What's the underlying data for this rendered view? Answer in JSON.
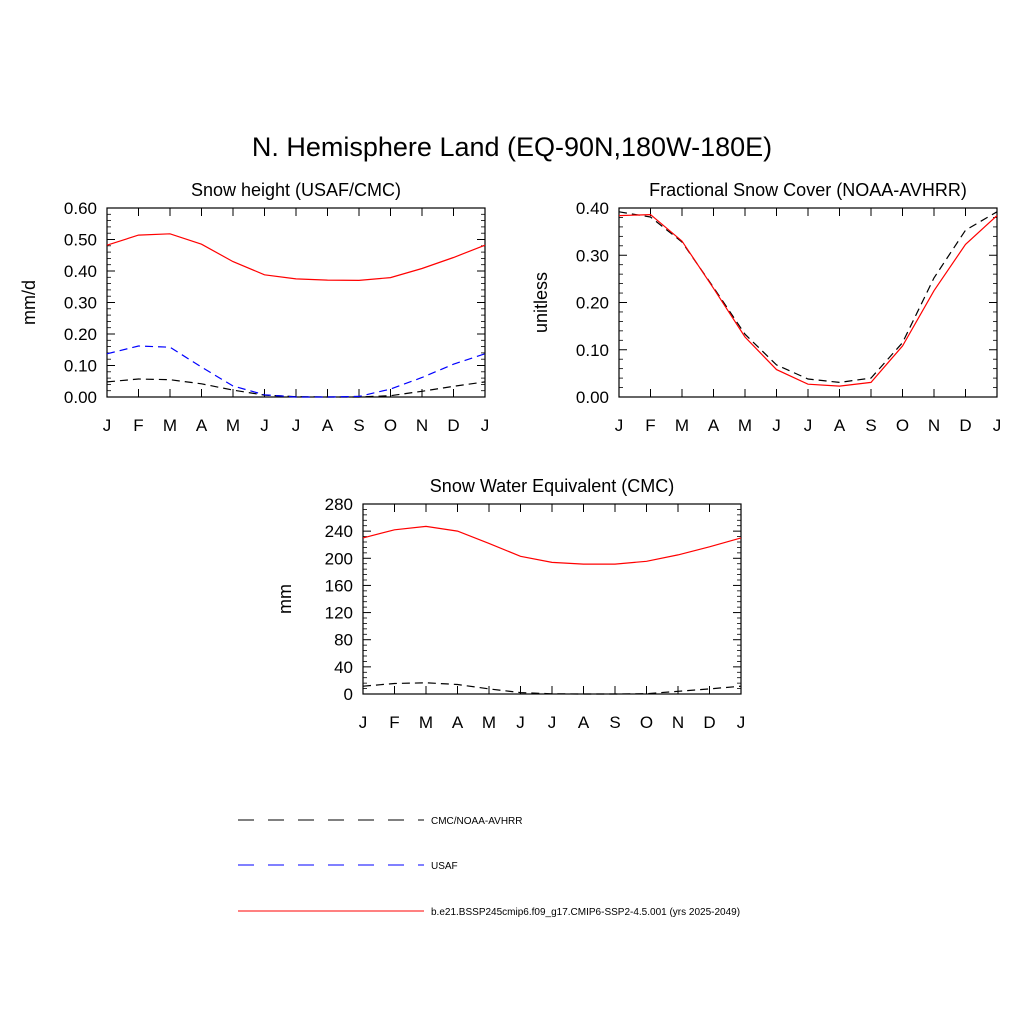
{
  "main_title": "N. Hemisphere Land (EQ-90N,180W-180E)",
  "colors": {
    "model": "#ff0000",
    "usaf": "#0000ff",
    "obs": "#000000"
  },
  "legend": [
    {
      "label": "CMC/NOAA-AVHRR",
      "color": "#000000",
      "style": "dashed"
    },
    {
      "label": "USAF",
      "color": "#0000ff",
      "style": "dashed"
    },
    {
      "label": "b.e21.BSSP245cmip6.f09_g17.CMIP6-SSP2-4.5.001 (yrs 2025-2049)",
      "color": "#ff0000",
      "style": "solid"
    }
  ],
  "chart_data": [
    {
      "type": "line",
      "title": "Snow height (USAF/CMC)",
      "xlabel": "",
      "ylabel": "mm/d",
      "categories": [
        "J",
        "F",
        "M",
        "A",
        "M",
        "J",
        "J",
        "A",
        "S",
        "O",
        "N",
        "D",
        "J"
      ],
      "ylim": [
        0,
        0.6
      ],
      "yticks": [
        0,
        0.1,
        0.2,
        0.3,
        0.4,
        0.5,
        0.6
      ],
      "ytick_labels": [
        "0.00",
        "0.10",
        "0.20",
        "0.30",
        "0.40",
        "0.50",
        "0.60"
      ],
      "series": [
        {
          "key": "obs",
          "values": [
            0.048,
            0.057,
            0.055,
            0.042,
            0.022,
            0.006,
            0.001,
            0.0,
            0.0,
            0.004,
            0.018,
            0.034,
            0.048
          ]
        },
        {
          "key": "usaf",
          "values": [
            0.137,
            0.162,
            0.158,
            0.095,
            0.035,
            0.007,
            0.0,
            0.0,
            0.002,
            0.025,
            0.062,
            0.104,
            0.137
          ]
        },
        {
          "key": "model",
          "values": [
            0.482,
            0.514,
            0.518,
            0.485,
            0.43,
            0.388,
            0.375,
            0.371,
            0.37,
            0.379,
            0.408,
            0.443,
            0.482
          ]
        }
      ]
    },
    {
      "type": "line",
      "title": "Fractional Snow Cover (NOAA-AVHRR)",
      "xlabel": "",
      "ylabel": "unitless",
      "categories": [
        "J",
        "F",
        "M",
        "A",
        "M",
        "J",
        "J",
        "A",
        "S",
        "O",
        "N",
        "D",
        "J"
      ],
      "ylim": [
        0,
        0.4
      ],
      "yticks": [
        0,
        0.1,
        0.2,
        0.3,
        0.4
      ],
      "ytick_labels": [
        "0.00",
        "0.10",
        "0.20",
        "0.30",
        "0.40"
      ],
      "series": [
        {
          "key": "obs",
          "values": [
            0.392,
            0.381,
            0.328,
            0.232,
            0.133,
            0.068,
            0.038,
            0.031,
            0.04,
            0.115,
            0.252,
            0.353,
            0.392
          ]
        },
        {
          "key": "model",
          "values": [
            0.384,
            0.386,
            0.33,
            0.23,
            0.127,
            0.058,
            0.027,
            0.023,
            0.031,
            0.108,
            0.225,
            0.323,
            0.384
          ]
        }
      ]
    },
    {
      "type": "line",
      "title": "Snow Water Equivalent (CMC)",
      "xlabel": "",
      "ylabel": "mm",
      "categories": [
        "J",
        "F",
        "M",
        "A",
        "M",
        "J",
        "J",
        "A",
        "S",
        "O",
        "N",
        "D",
        "J"
      ],
      "ylim": [
        0,
        280
      ],
      "yticks": [
        0,
        40,
        80,
        120,
        160,
        200,
        240,
        280
      ],
      "ytick_labels": [
        "0",
        "40",
        "80",
        "120",
        "160",
        "200",
        "240",
        "280"
      ],
      "series": [
        {
          "key": "obs",
          "values": [
            11.5,
            15.5,
            16.5,
            14,
            7.5,
            2,
            0.3,
            0,
            0,
            0.5,
            4,
            7.5,
            11.5
          ]
        },
        {
          "key": "model",
          "values": [
            230,
            242,
            247,
            240,
            222,
            203,
            194,
            191.5,
            191.5,
            195.5,
            205,
            217,
            230
          ]
        }
      ]
    }
  ]
}
